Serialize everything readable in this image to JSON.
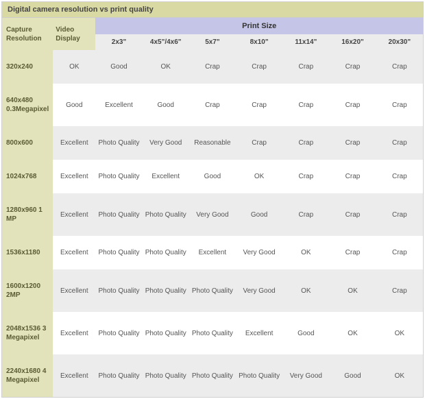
{
  "title": "Digital camera resolution vs print quality",
  "headers": {
    "capture": "Capture Resolution",
    "video": "Video Display",
    "printSizeGroup": "Print Size",
    "printSizes": [
      "2x3\"",
      "4x5\"/4x6\"",
      "5x7\"",
      "8x10\"",
      "11x14\"",
      "16x20\"",
      "20x30\""
    ]
  },
  "colors": {
    "titleBg": "#d9d9a3",
    "headerGroupBg": "#c5c5e8",
    "headerSubBg": "#ececec",
    "rowHeadBg": "#e3e3bb",
    "evenRowBg": "#ececec",
    "oddRowBg": "#ffffff",
    "text": "#555555"
  },
  "rows": [
    {
      "res": "320x240",
      "cells": [
        "OK",
        "Good",
        "OK",
        "Crap",
        "Crap",
        "Crap",
        "Crap",
        "Crap"
      ]
    },
    {
      "res": "640x480 0.3Megapixel",
      "cells": [
        "Good",
        "Excellent",
        "Good",
        "Crap",
        "Crap",
        "Crap",
        "Crap",
        "Crap"
      ]
    },
    {
      "res": "800x600",
      "cells": [
        "Excellent",
        "Photo Quality",
        "Very Good",
        "Reasonable",
        "Crap",
        "Crap",
        "Crap",
        "Crap"
      ]
    },
    {
      "res": "1024x768",
      "cells": [
        "Excellent",
        "Photo Quality",
        "Excellent",
        "Good",
        "OK",
        "Crap",
        "Crap",
        "Crap"
      ]
    },
    {
      "res": "1280x960 1 MP",
      "cells": [
        "Excellent",
        "Photo Quality",
        "Photo Quality",
        "Very Good",
        "Good",
        "Crap",
        "Crap",
        "Crap"
      ]
    },
    {
      "res": "1536x1180",
      "cells": [
        "Excellent",
        "Photo Quality",
        "Photo Quality",
        "Excellent",
        "Very Good",
        "OK",
        "Crap",
        "Crap"
      ]
    },
    {
      "res": "1600x1200 2MP",
      "cells": [
        "Excellent",
        "Photo Quality",
        "Photo Quality",
        "Photo Quality",
        "Very Good",
        "OK",
        "OK",
        "Crap"
      ]
    },
    {
      "res": "2048x1536 3 Megapixel",
      "cells": [
        "Excellent",
        "Photo Quality",
        "Photo Quality",
        "Photo Quality",
        "Excellent",
        "Good",
        "OK",
        "OK"
      ]
    },
    {
      "res": "2240x1680 4 Megapixel",
      "cells": [
        "Excellent",
        "Photo Quality",
        "Photo Quality",
        "Photo Quality",
        "Photo Quality",
        "Very Good",
        "Good",
        "OK"
      ]
    }
  ]
}
